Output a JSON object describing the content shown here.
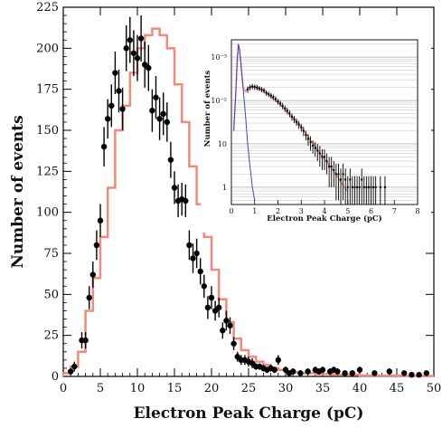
{
  "chart_data": [
    {
      "type": "scatter",
      "xlabel": "Electron Peak Charge (pC)",
      "ylabel": "Number of events",
      "xlim": [
        0,
        50
      ],
      "ylim": [
        0,
        225
      ],
      "xticks": [
        "0",
        "5",
        "10",
        "15",
        "20",
        "25",
        "30",
        "35",
        "40",
        "45",
        "50"
      ],
      "yticks": [
        "0",
        "25",
        "50",
        "75",
        "100",
        "125",
        "150",
        "175",
        "200",
        "225"
      ],
      "colors": {
        "data": "#000000",
        "simulation": "#f08a7a"
      },
      "series": [
        {
          "style": "points-with-error-bars",
          "x": [
            1,
            1.5,
            2.5,
            3,
            3.5,
            4,
            4.5,
            5,
            5.5,
            6,
            6.5,
            7,
            7.5,
            8,
            8.5,
            9,
            9.5,
            10,
            10.5,
            11,
            11.5,
            12,
            12.5,
            13,
            13.5,
            14,
            14.5,
            15,
            15.5,
            16,
            16.5,
            17,
            17.5,
            18,
            18.5,
            19,
            19.5,
            20,
            20.5,
            21,
            21.5,
            22,
            22.5,
            23,
            23.5,
            24,
            24.5,
            25,
            25.5,
            26,
            26.5,
            27,
            27.5,
            28,
            28.5,
            29,
            30,
            30.5,
            31,
            32,
            33,
            34,
            34.5,
            35,
            36,
            36.5,
            37,
            38,
            39,
            40,
            42,
            44,
            46,
            47,
            48,
            49
          ],
          "y": [
            3,
            6,
            22,
            22,
            48,
            62,
            80,
            95,
            140,
            157,
            165,
            185,
            174,
            163,
            200,
            205,
            197,
            194,
            206,
            190,
            188,
            162,
            170,
            157,
            160,
            155,
            132,
            115,
            107,
            108,
            107,
            80,
            72,
            75,
            64,
            55,
            42,
            48,
            40,
            42,
            28,
            34,
            31,
            20,
            12,
            10,
            10,
            9,
            8,
            6,
            6,
            5,
            4,
            5,
            4,
            10,
            4,
            2,
            3,
            2,
            3,
            4,
            3,
            4,
            3,
            4,
            3,
            2,
            2,
            4,
            2,
            3,
            2,
            1,
            1,
            2
          ],
          "err": [
            2,
            3,
            5,
            5,
            7,
            8,
            9,
            10,
            12,
            12,
            13,
            13,
            13,
            13,
            14,
            14,
            14,
            14,
            14,
            14,
            14,
            13,
            13,
            13,
            13,
            12,
            11,
            10,
            10,
            10,
            10,
            9,
            9,
            9,
            8,
            7,
            7,
            7,
            6,
            6,
            5,
            6,
            5,
            4,
            3,
            3,
            3,
            3,
            3,
            2,
            2,
            2,
            2,
            2,
            2,
            3,
            2,
            1,
            2,
            1,
            2,
            2,
            2,
            2,
            2,
            2,
            2,
            1,
            1,
            2,
            1,
            2,
            1,
            1,
            1,
            1
          ]
        },
        {
          "style": "step-histogram",
          "x": [
            0,
            1,
            2,
            3,
            4,
            5,
            6,
            7,
            8,
            9,
            10,
            11,
            12,
            13,
            14,
            15,
            16,
            17,
            18,
            19,
            20,
            21,
            22,
            23,
            24,
            25,
            26,
            27,
            28,
            29,
            30,
            31,
            32,
            33,
            34,
            35,
            36,
            37,
            38,
            39,
            40,
            41,
            42,
            43,
            44,
            45,
            46,
            47,
            48,
            49,
            50
          ],
          "y": [
            2,
            6,
            15,
            40,
            60,
            85,
            115,
            150,
            165,
            185,
            200,
            208,
            212,
            208,
            200,
            178,
            155,
            128,
            105,
            85,
            65,
            47,
            33,
            23,
            16,
            12,
            9,
            7,
            5,
            4,
            3,
            2.5,
            2,
            2,
            1.5,
            1.5,
            1,
            1,
            1,
            1,
            0.5,
            0.5,
            0.5,
            0.5,
            0.5,
            0.5,
            0.3,
            0.3,
            0.3,
            0.3,
            0.3
          ]
        }
      ]
    },
    {
      "type": "scatter",
      "xlabel": "Electron Peak Charge (pC)",
      "ylabel": "Number of events",
      "log_y": true,
      "grid": true,
      "xlim": [
        0,
        8
      ],
      "ylim": [
        0.4,
        2500
      ],
      "xticks": [
        "0",
        "1",
        "2",
        "3",
        "4",
        "5",
        "6",
        "7",
        "8"
      ],
      "yticks": [
        "1",
        "10",
        "10⁻²",
        "10⁻³"
      ],
      "colors": {
        "data": "#000000",
        "simulation": "#f08a7a",
        "background": "#4444cc"
      },
      "series": [
        {
          "style": "points-with-error-bars",
          "x": [
            0.7,
            0.8,
            0.9,
            1.0,
            1.1,
            1.2,
            1.3,
            1.4,
            1.5,
            1.6,
            1.7,
            1.8,
            1.9,
            2.0,
            2.1,
            2.2,
            2.3,
            2.4,
            2.5,
            2.6,
            2.7,
            2.8,
            2.9,
            3.0,
            3.1,
            3.2,
            3.3,
            3.4,
            3.5,
            3.6,
            3.7,
            3.8,
            3.9,
            4.0,
            4.1,
            4.2,
            4.3,
            4.4,
            4.5,
            4.6,
            4.7,
            4.8,
            4.9,
            5.0,
            5.1,
            5.2,
            5.3,
            5.4,
            5.5,
            5.6,
            5.7,
            5.8,
            5.9,
            6.0,
            6.1,
            6.2,
            6.4,
            6.6
          ],
          "y": [
            180,
            200,
            210,
            205,
            200,
            190,
            180,
            170,
            150,
            140,
            130,
            120,
            108,
            95,
            85,
            75,
            65,
            58,
            50,
            42,
            37,
            32,
            28,
            24,
            20,
            16,
            13,
            11,
            9,
            8,
            7,
            6,
            5,
            5,
            4,
            3,
            3,
            2.5,
            2,
            2,
            1.5,
            2,
            1.5,
            1,
            1.5,
            1,
            1,
            1,
            1,
            1.5,
            1,
            1,
            1,
            1,
            1,
            1,
            1,
            1
          ],
          "err": [
            30,
            30,
            30,
            30,
            30,
            25,
            25,
            25,
            22,
            20,
            20,
            18,
            16,
            14,
            13,
            12,
            11,
            10,
            9,
            8,
            7,
            6,
            6,
            5,
            5,
            4,
            4,
            4,
            3,
            3,
            3,
            3,
            2.5,
            2.5,
            2,
            2,
            2,
            1.5,
            1.5,
            1.5,
            1.2,
            1.5,
            1.2,
            0.8,
            1.2,
            0.8,
            0.8,
            0.8,
            0.8,
            1.2,
            0.8,
            0.8,
            0.8,
            0.8,
            0.8,
            0.8,
            0.8,
            0.8
          ]
        },
        {
          "style": "line",
          "x": [
            0.1,
            0.2,
            0.25,
            0.3,
            0.35,
            0.4,
            0.45,
            0.5,
            0.6,
            0.7,
            0.8,
            0.9,
            1.0,
            1.2,
            1.4,
            1.6,
            1.8,
            2.0,
            2.2,
            2.4,
            2.6,
            2.8,
            3.0,
            3.2,
            3.4,
            3.6,
            3.8,
            4.0,
            4.2,
            4.4,
            4.6,
            4.8,
            5.0
          ],
          "y": [
            20,
            200,
            800,
            2000,
            1500,
            800,
            400,
            200,
            160,
            190,
            205,
            208,
            200,
            180,
            160,
            135,
            110,
            90,
            72,
            55,
            42,
            32,
            24,
            17,
            12,
            9,
            6,
            4.5,
            3.2,
            2.3,
            1.6,
            1.1,
            0.8
          ]
        },
        {
          "style": "line",
          "x": [
            0.1,
            0.2,
            0.25,
            0.3,
            0.35,
            0.4,
            0.5,
            0.6,
            0.7,
            0.8,
            0.9,
            1.0
          ],
          "y": [
            20,
            200,
            800,
            2000,
            1500,
            800,
            200,
            50,
            10,
            3,
            1,
            0.5
          ]
        }
      ]
    }
  ]
}
